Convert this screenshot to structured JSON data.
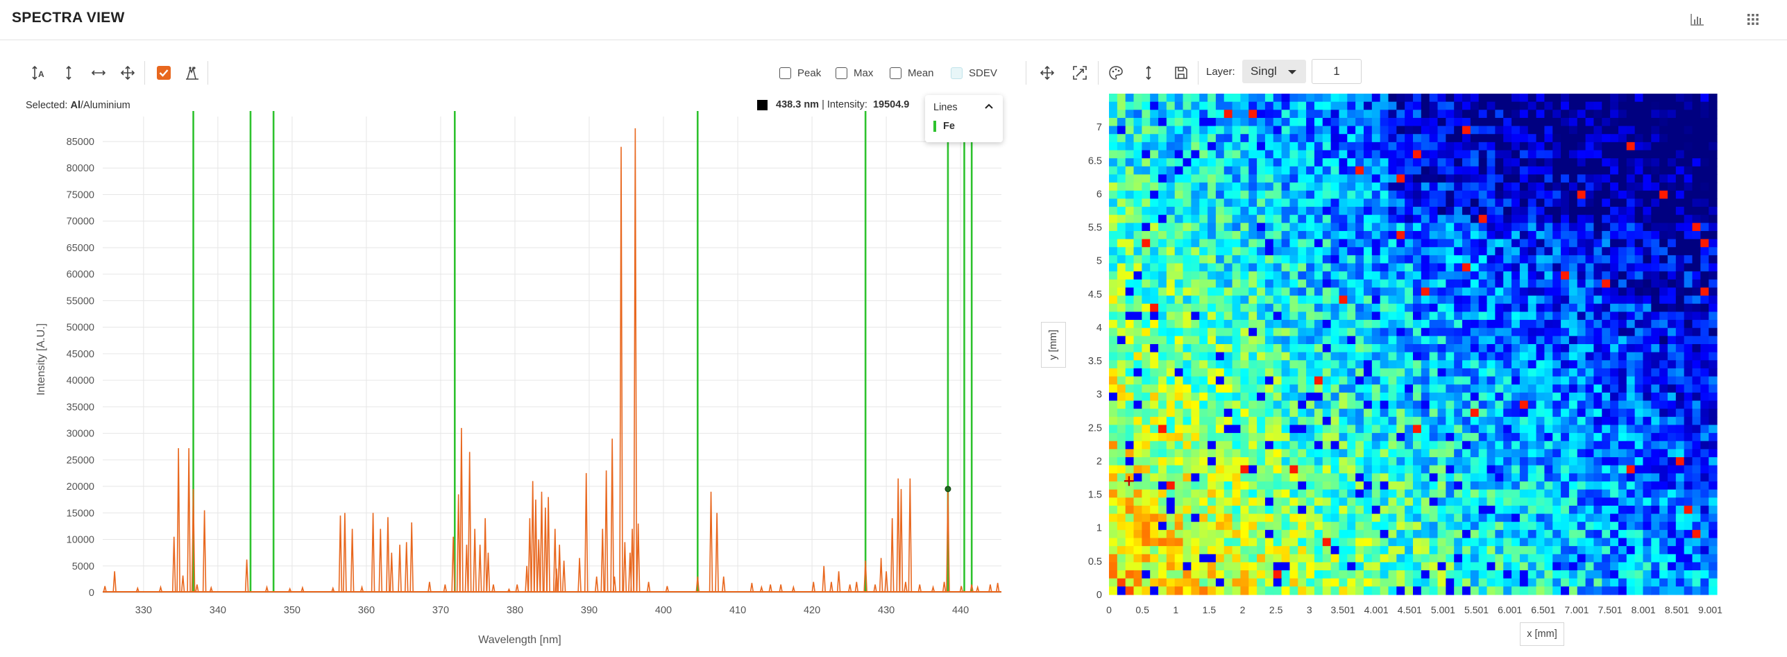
{
  "header": {
    "title": "SPECTRA VIEW",
    "icons": [
      "bar-chart-icon",
      "apps-grid-icon"
    ]
  },
  "toolbar": {
    "icons": [
      "autoscale-y-icon",
      "zoom-y-icon",
      "zoom-x-icon",
      "pan-icon",
      "checkbox-checked-icon",
      "peak-marker-icon"
    ],
    "checkboxes": [
      {
        "label": "Peak",
        "checked": false
      },
      {
        "label": "Max",
        "checked": false
      },
      {
        "label": "Mean",
        "checked": false
      },
      {
        "label": "SDEV",
        "checked": false
      }
    ]
  },
  "selection": {
    "prefix": "Selected: ",
    "symbol": "Al",
    "name": "/Aluminium"
  },
  "readout": {
    "wavelength": "438.3 nm",
    "separator": " | ",
    "intensity_label": "Intensity:",
    "intensity_value": "19504.9"
  },
  "lines_popup": {
    "title": "Lines",
    "items": [
      {
        "label": "Fe",
        "color": "#2ec22e"
      }
    ]
  },
  "map_toolbar": {
    "icons": [
      "move-icon",
      "fit-icon",
      "palette-icon",
      "vertical-resize-icon",
      "save-icon"
    ],
    "layer_label": "Layer:",
    "layer_mode": "Singl",
    "layer_value": "1"
  },
  "colors": {
    "spectrum": "#e8671e",
    "fe_lines": "#2ec22e",
    "grid": "#e6e6e6",
    "accent": "#e8671e"
  },
  "chart_data": [
    {
      "type": "line",
      "xlabel": "Wavelength [nm]",
      "ylabel": "Intensity [A.U.]",
      "xlim": [
        324.5,
        445.5
      ],
      "ylim": [
        0,
        87500
      ],
      "x_ticks": [
        330,
        340,
        350,
        360,
        370,
        380,
        390,
        400,
        410,
        420,
        430,
        440
      ],
      "y_ticks": [
        0,
        5000,
        10000,
        15000,
        20000,
        25000,
        30000,
        35000,
        40000,
        45000,
        50000,
        55000,
        60000,
        65000,
        70000,
        75000,
        80000,
        85000
      ],
      "series": [
        {
          "peaks": [
            [
              324.8,
              1200
            ],
            [
              326.1,
              4000
            ],
            [
              329.2,
              800
            ],
            [
              332.3,
              1000
            ],
            [
              334.1,
              10500
            ],
            [
              334.7,
              27200
            ],
            [
              335.3,
              3200
            ],
            [
              336.1,
              27200
            ],
            [
              336.7,
              19500
            ],
            [
              337.2,
              1500
            ],
            [
              338.2,
              15500
            ],
            [
              339.1,
              900
            ],
            [
              343.9,
              6200
            ],
            [
              346.6,
              1000
            ],
            [
              349.7,
              700
            ],
            [
              351.4,
              900
            ],
            [
              355.5,
              800
            ],
            [
              356.5,
              14500
            ],
            [
              357.1,
              15000
            ],
            [
              358.1,
              12000
            ],
            [
              359.4,
              1000
            ],
            [
              360.9,
              15000
            ],
            [
              361.9,
              12000
            ],
            [
              362.9,
              14200
            ],
            [
              363.4,
              7500
            ],
            [
              364.5,
              9000
            ],
            [
              365.4,
              9500
            ],
            [
              366.1,
              13200
            ],
            [
              368.5,
              2000
            ],
            [
              370.6,
              1500
            ],
            [
              371.7,
              10500
            ],
            [
              372.4,
              18500
            ],
            [
              372.8,
              31000
            ],
            [
              373.5,
              9000
            ],
            [
              373.9,
              26500
            ],
            [
              374.6,
              12000
            ],
            [
              375.3,
              9000
            ],
            [
              376.0,
              14000
            ],
            [
              376.4,
              7500
            ],
            [
              377.1,
              1500
            ],
            [
              379.2,
              600
            ],
            [
              380.3,
              1500
            ],
            [
              381.6,
              5000
            ],
            [
              382.0,
              14000
            ],
            [
              382.4,
              21000
            ],
            [
              382.8,
              17500
            ],
            [
              383.2,
              10000
            ],
            [
              383.6,
              19000
            ],
            [
              384.1,
              16000
            ],
            [
              384.5,
              18000
            ],
            [
              385.4,
              12000
            ],
            [
              385.6,
              4500
            ],
            [
              386.0,
              9000
            ],
            [
              386.6,
              6000
            ],
            [
              388.7,
              6500
            ],
            [
              389.6,
              22500
            ],
            [
              391.0,
              3000
            ],
            [
              391.8,
              12000
            ],
            [
              392.3,
              23000
            ],
            [
              393.1,
              29000
            ],
            [
              393.4,
              3000
            ],
            [
              394.3,
              84000
            ],
            [
              394.8,
              9500
            ],
            [
              395.5,
              7500
            ],
            [
              395.8,
              12000
            ],
            [
              396.2,
              87500
            ],
            [
              396.6,
              13000
            ],
            [
              398.0,
              2000
            ],
            [
              400.5,
              1200
            ],
            [
              404.6,
              3000
            ],
            [
              406.4,
              19000
            ],
            [
              407.2,
              15000
            ],
            [
              408.1,
              3000
            ],
            [
              411.9,
              1800
            ],
            [
              413.2,
              1000
            ],
            [
              414.4,
              1500
            ],
            [
              415.8,
              1500
            ],
            [
              417.5,
              1000
            ],
            [
              420.2,
              2000
            ],
            [
              421.6,
              5000
            ],
            [
              422.6,
              2000
            ],
            [
              423.6,
              4000
            ],
            [
              425.1,
              1500
            ],
            [
              426.0,
              2000
            ],
            [
              427.2,
              6000
            ],
            [
              428.5,
              1500
            ],
            [
              429.3,
              6500
            ],
            [
              430.0,
              4000
            ],
            [
              430.8,
              14000
            ],
            [
              431.6,
              21500
            ],
            [
              432.0,
              19500
            ],
            [
              432.6,
              2000
            ],
            [
              433.2,
              21500
            ],
            [
              434.5,
              1500
            ],
            [
              436.3,
              1000
            ],
            [
              437.8,
              2000
            ],
            [
              438.3,
              19504.9
            ],
            [
              440.1,
              1200
            ],
            [
              441.5,
              1500
            ],
            [
              442.3,
              1000
            ],
            [
              444.0,
              1500
            ],
            [
              445.0,
              1800
            ]
          ]
        }
      ],
      "fe_lines_nm": [
        336.7,
        344.4,
        347.5,
        371.9,
        404.6,
        427.2,
        438.3,
        440.5,
        441.5
      ],
      "marker": {
        "x": 438.3,
        "y": 19504.9
      }
    },
    {
      "type": "heatmap",
      "xlabel": "x [mm]",
      "ylabel": "y [mm]",
      "x_ticks": [
        "0",
        "0.5",
        "1",
        "1.5",
        "2",
        "2.5",
        "3",
        "3.501",
        "4.001",
        "4.501",
        "5.001",
        "5.501",
        "6.001",
        "6.501",
        "7.001",
        "7.501",
        "8.001",
        "8.501",
        "9.001"
      ],
      "y_ticks": [
        "0",
        "0.5",
        "1",
        "1.5",
        "2",
        "2.5",
        "3",
        "3.5",
        "4",
        "4.5",
        "5",
        "5.5",
        "6",
        "6.5",
        "7"
      ],
      "xlim": [
        0,
        9.1
      ],
      "ylim": [
        0,
        7.5
      ],
      "colorscale": "jet",
      "cursor": {
        "x": 0.3,
        "y": 1.7
      }
    }
  ]
}
